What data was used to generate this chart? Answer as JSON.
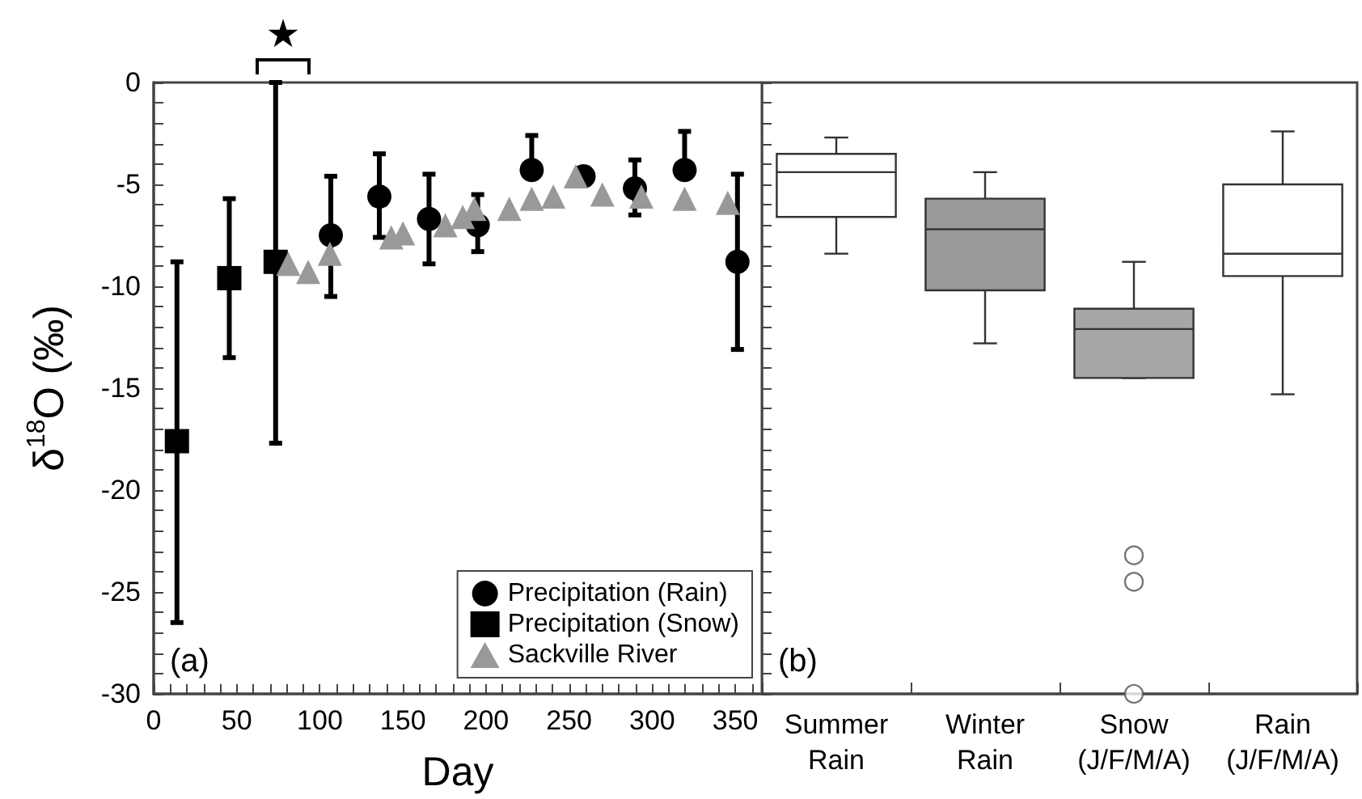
{
  "chart_data": [
    {
      "type": "scatter",
      "xlabel": "Day",
      "ylabel": "δ$^{18}$O (‰)",
      "xlim": [
        0,
        366
      ],
      "xticks": [
        0,
        50,
        100,
        150,
        200,
        250,
        300,
        350
      ],
      "ylim": [
        -30,
        0
      ],
      "yticks": [
        -30,
        -25,
        -20,
        -15,
        -10,
        -5,
        0
      ],
      "legend": "bottom right",
      "annotations": [
        "★",
        "(a)"
      ],
      "series": [
        {
          "name": "Precipitation (Rain)",
          "color": "#000000",
          "marker": "circle",
          "x": [
            106.6,
            135.8,
            165.7,
            195,
            227.5,
            258.7,
            289.6,
            319.5,
            351.3
          ],
          "values": [
            -7.5,
            -5.6,
            -6.7,
            -7.0,
            -4.3,
            -4.6,
            -5.2,
            -4.3,
            -8.8
          ],
          "errors": [
            [
              -10.5,
              -4.6
            ],
            [
              -7.6,
              -3.5
            ],
            [
              -8.9,
              -4.5
            ],
            [
              -8.3,
              -5.5
            ],
            [
              -4.3,
              -2.6
            ],
            [
              -5.0,
              -4.2
            ],
            [
              -6.5,
              -3.8
            ],
            [
              -4.3,
              -2.4
            ],
            [
              -13.1,
              -4.5
            ]
          ]
        },
        {
          "name": "Precipitation (Snow)",
          "color": "#000000",
          "marker": "square",
          "x": [
            14,
            45.5,
            73.4
          ],
          "values": [
            -17.6,
            -9.6,
            -8.8
          ],
          "errors": [
            [
              -26.5,
              -8.8
            ],
            [
              -13.5,
              -5.7
            ],
            [
              -17.7,
              0
            ]
          ]
        },
        {
          "name": "Sackville River",
          "color": "#999999",
          "marker": "triangle",
          "x": [
            81,
            93,
            106,
            143,
            150,
            175.5,
            186,
            193,
            214,
            227.5,
            240.5,
            254,
            270,
            293.5,
            319.5,
            345.5
          ],
          "values": [
            -8.9,
            -9.3,
            -8.4,
            -7.6,
            -7.4,
            -7.0,
            -6.6,
            -6.2,
            -6.2,
            -5.7,
            -5.6,
            -4.6,
            -5.5,
            -5.6,
            -5.7,
            -5.9
          ]
        }
      ]
    },
    {
      "type": "box",
      "categories": [
        "Summer\nRain",
        "Winter\nRain",
        "Snow\n(J/F/M/A)",
        "Rain\n(J/F/M/A)"
      ],
      "ylim": [
        -30,
        0
      ],
      "yticks": [
        -30,
        -25,
        -20,
        -15,
        -10,
        -5,
        0
      ],
      "tick_labels": "x",
      "annotations": [
        "(b)"
      ],
      "colors": [
        "#ffffff",
        "#9a9a9a",
        "#a6a6a6",
        "#ffffff"
      ],
      "boxes": [
        {
          "low": -8.4,
          "q1": -6.6,
          "median": -4.4,
          "q3": -3.5,
          "high": -2.7
        },
        {
          "low": -12.8,
          "q1": -10.2,
          "median": -7.2,
          "q3": -5.7,
          "high": -4.4
        },
        {
          "low": -14.5,
          "q1": -14.5,
          "median": -12.1,
          "q3": -11.1,
          "high": -8.8,
          "outliers": [
            -23.2,
            -24.5,
            -30
          ]
        },
        {
          "low": -15.3,
          "q1": -9.5,
          "median": -8.4,
          "q3": -5.0,
          "high": -2.4
        }
      ]
    }
  ]
}
